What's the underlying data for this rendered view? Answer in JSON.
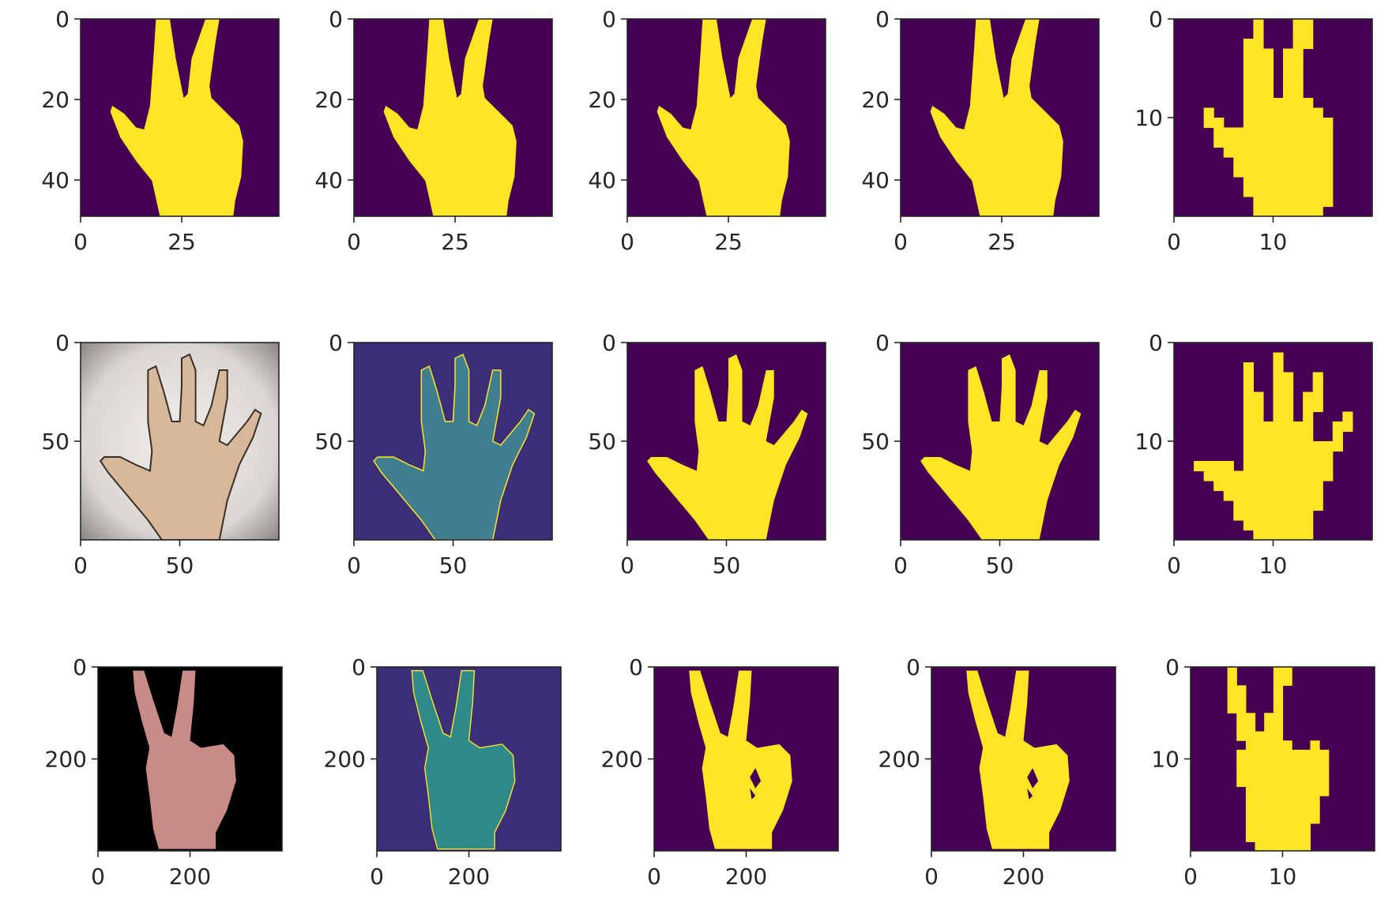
{
  "colors": {
    "background": "#440154",
    "foreground": "#FDE725",
    "mid": "#3B7C8A",
    "axis": "#262626"
  },
  "chart_data": [
    {
      "type": "image",
      "panel": "r1c1",
      "rows": 1,
      "col": 1,
      "xlim": [
        0,
        49
      ],
      "ylim": [
        49,
        0
      ],
      "xticks": [
        0,
        25
      ],
      "yticks": [
        0,
        20,
        40
      ],
      "image": "three-finger-binary-mask",
      "img_h": 49,
      "img_w": 49
    },
    {
      "type": "image",
      "panel": "r1c2",
      "rows": 1,
      "col": 2,
      "xlim": [
        0,
        49
      ],
      "ylim": [
        49,
        0
      ],
      "xticks": [
        0,
        25
      ],
      "yticks": [
        0,
        20,
        40
      ],
      "image": "three-finger-binary-mask",
      "img_h": 49,
      "img_w": 49
    },
    {
      "type": "image",
      "panel": "r1c3",
      "rows": 1,
      "col": 3,
      "xlim": [
        0,
        49
      ],
      "ylim": [
        49,
        0
      ],
      "xticks": [
        0,
        25
      ],
      "yticks": [
        0,
        20,
        40
      ],
      "image": "three-finger-binary-mask",
      "img_h": 49,
      "img_w": 49
    },
    {
      "type": "image",
      "panel": "r1c4",
      "rows": 1,
      "col": 4,
      "xlim": [
        0,
        49
      ],
      "ylim": [
        49,
        0
      ],
      "xticks": [
        0,
        25
      ],
      "yticks": [
        0,
        20,
        40
      ],
      "image": "three-finger-binary-mask",
      "img_h": 49,
      "img_w": 49
    },
    {
      "type": "image",
      "panel": "r1c5",
      "rows": 1,
      "col": 5,
      "xlim": [
        0,
        20
      ],
      "ylim": [
        20,
        0
      ],
      "xticks": [
        0,
        10
      ],
      "yticks": [
        0,
        10
      ],
      "image": "three-finger-20x20-pixel-mask",
      "img_h": 20,
      "img_w": 20
    },
    {
      "type": "image",
      "panel": "r2c1",
      "rows": 2,
      "col": 1,
      "xlim": [
        0,
        100
      ],
      "ylim": [
        100,
        0
      ],
      "xticks": [
        0,
        50
      ],
      "yticks": [
        0,
        50
      ],
      "image": "open-hand-photo",
      "img_h": 100,
      "img_w": 100
    },
    {
      "type": "image",
      "panel": "r2c2",
      "rows": 2,
      "col": 2,
      "xlim": [
        0,
        100
      ],
      "ylim": [
        100,
        0
      ],
      "xticks": [
        0,
        50
      ],
      "yticks": [
        0,
        50
      ],
      "image": "open-hand-grayscale-viridis",
      "img_h": 100,
      "img_w": 100
    },
    {
      "type": "image",
      "panel": "r2c3",
      "rows": 2,
      "col": 3,
      "xlim": [
        0,
        100
      ],
      "ylim": [
        100,
        0
      ],
      "xticks": [
        0,
        50
      ],
      "yticks": [
        0,
        50
      ],
      "image": "open-hand-binary-mask",
      "img_h": 100,
      "img_w": 100
    },
    {
      "type": "image",
      "panel": "r2c4",
      "rows": 2,
      "col": 4,
      "xlim": [
        0,
        100
      ],
      "ylim": [
        100,
        0
      ],
      "xticks": [
        0,
        50
      ],
      "yticks": [
        0,
        50
      ],
      "image": "open-hand-binary-mask",
      "img_h": 100,
      "img_w": 100
    },
    {
      "type": "image",
      "panel": "r2c5",
      "rows": 2,
      "col": 5,
      "xlim": [
        0,
        20
      ],
      "ylim": [
        20,
        0
      ],
      "xticks": [
        0,
        10
      ],
      "yticks": [
        0,
        10
      ],
      "image": "open-hand-20x20-pixel-mask",
      "img_h": 20,
      "img_w": 20
    },
    {
      "type": "image",
      "panel": "r3c1",
      "rows": 3,
      "col": 1,
      "xlim": [
        0,
        400
      ],
      "ylim": [
        400,
        0
      ],
      "xticks": [
        0,
        200
      ],
      "yticks": [
        0,
        200
      ],
      "image": "peace-sign-photo",
      "img_h": 400,
      "img_w": 400
    },
    {
      "type": "image",
      "panel": "r3c2",
      "rows": 3,
      "col": 2,
      "xlim": [
        0,
        400
      ],
      "ylim": [
        400,
        0
      ],
      "xticks": [
        0,
        200
      ],
      "yticks": [
        0,
        200
      ],
      "image": "peace-sign-grayscale-viridis",
      "img_h": 400,
      "img_w": 400
    },
    {
      "type": "image",
      "panel": "r3c3",
      "rows": 3,
      "col": 3,
      "xlim": [
        0,
        400
      ],
      "ylim": [
        400,
        0
      ],
      "xticks": [
        0,
        200
      ],
      "yticks": [
        0,
        200
      ],
      "image": "peace-sign-binary-mask",
      "img_h": 400,
      "img_w": 400
    },
    {
      "type": "image",
      "panel": "r3c4",
      "rows": 3,
      "col": 4,
      "xlim": [
        0,
        400
      ],
      "ylim": [
        400,
        0
      ],
      "xticks": [
        0,
        200
      ],
      "yticks": [
        0,
        200
      ],
      "image": "peace-sign-binary-mask",
      "img_h": 400,
      "img_w": 400
    },
    {
      "type": "image",
      "panel": "r3c5",
      "rows": 3,
      "col": 5,
      "xlim": [
        0,
        20
      ],
      "ylim": [
        20,
        0
      ],
      "xticks": [
        0,
        10
      ],
      "yticks": [
        0,
        10
      ],
      "image": "peace-sign-20x20-pixel-mask",
      "img_h": 20,
      "img_w": 20
    }
  ]
}
